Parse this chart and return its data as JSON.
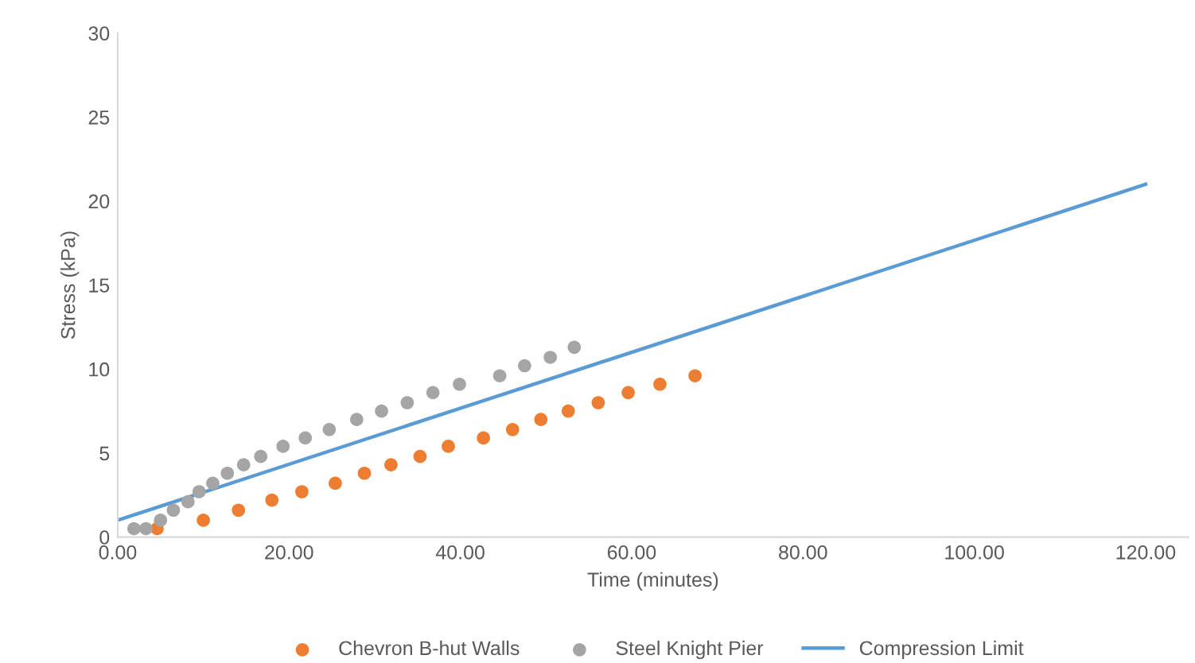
{
  "chart_data": {
    "type": "scatter",
    "xlabel": "Time (minutes)",
    "ylabel": "Stress (kPa)",
    "xlim": [
      0,
      125
    ],
    "ylim": [
      0,
      30
    ],
    "xticks": [
      {
        "value": 0,
        "label": "0.00"
      },
      {
        "value": 20,
        "label": "20.00"
      },
      {
        "value": 40,
        "label": "40.00"
      },
      {
        "value": 60,
        "label": "60.00"
      },
      {
        "value": 80,
        "label": "80.00"
      },
      {
        "value": 100,
        "label": "100.00"
      },
      {
        "value": 120,
        "label": "120.00"
      }
    ],
    "yticks": [
      0,
      5,
      10,
      15,
      20,
      25,
      30
    ],
    "grid": false,
    "legend": "bottom",
    "marker": "circle",
    "series": [
      {
        "name": "Chevron B-hut Walls",
        "color": "#ed7d31",
        "x": [
          4.6,
          10.0,
          14.1,
          18.0,
          21.5,
          25.4,
          28.8,
          31.9,
          35.3,
          38.6,
          42.7,
          46.1,
          49.4,
          52.6,
          56.1,
          59.6,
          63.3,
          67.4
        ],
        "values": [
          0.5,
          1.0,
          1.6,
          2.2,
          2.7,
          3.2,
          3.8,
          4.3,
          4.8,
          5.4,
          5.9,
          6.4,
          7.0,
          7.5,
          8.0,
          8.6,
          9.1,
          9.6
        ]
      },
      {
        "name": "Steel Knight Pier",
        "color": "#a5a5a5",
        "x": [
          1.9,
          3.3,
          5.0,
          6.5,
          8.2,
          9.5,
          11.1,
          12.8,
          14.7,
          16.7,
          19.3,
          21.9,
          24.7,
          27.9,
          30.8,
          33.8,
          36.8,
          39.9,
          44.6,
          47.5,
          50.5,
          53.3
        ],
        "values": [
          0.5,
          0.5,
          1.0,
          1.6,
          2.1,
          2.7,
          3.2,
          3.8,
          4.3,
          4.8,
          5.4,
          5.9,
          6.4,
          7.0,
          7.5,
          8.0,
          8.6,
          9.1,
          9.6,
          10.2,
          10.7,
          11.3
        ]
      },
      {
        "name": "Compression Limit",
        "type": "line",
        "marker": "none",
        "color": "#5b9bd5",
        "line_style": "solid",
        "x": [
          0,
          120
        ],
        "values": [
          1.0,
          21.0
        ]
      }
    ]
  }
}
